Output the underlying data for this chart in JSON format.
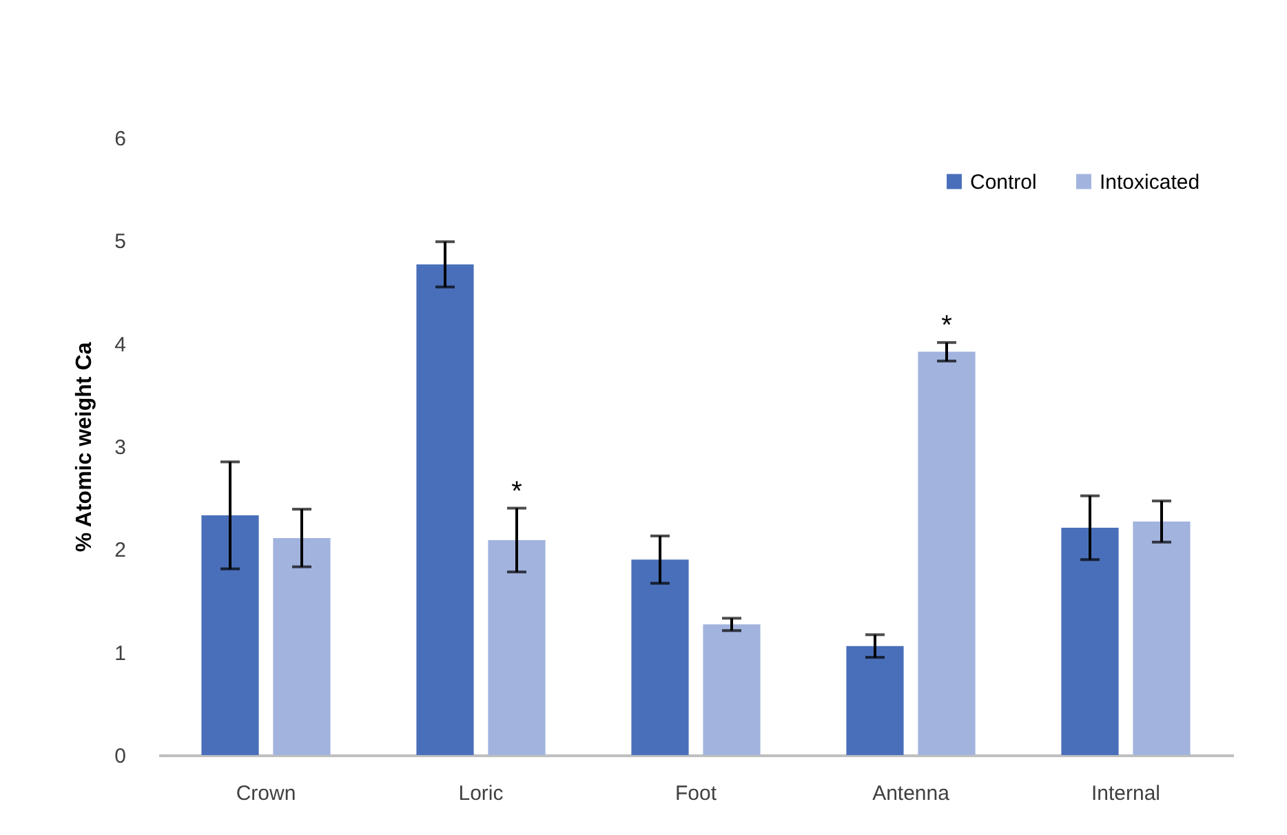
{
  "chart_data": {
    "type": "bar",
    "ylabel": "% Atomic weight Ca",
    "categories": [
      "Crown",
      "Loric",
      "Foot",
      "Antenna",
      "Internal"
    ],
    "series": [
      {
        "name": "Control",
        "color": "#4a6fba",
        "values": [
          2.33,
          4.77,
          1.9,
          1.06,
          2.21
        ],
        "errors": [
          0.52,
          0.22,
          0.23,
          0.11,
          0.31
        ]
      },
      {
        "name": "Intoxicated",
        "color": "#a2b3de",
        "values": [
          2.11,
          2.09,
          1.27,
          3.92,
          2.27
        ],
        "errors": [
          0.28,
          0.31,
          0.06,
          0.09,
          0.2
        ],
        "value_labels": [
          null,
          "*",
          null,
          "*",
          null
        ]
      }
    ],
    "ylim": [
      0,
      6
    ],
    "yticks": [
      0,
      1,
      2,
      3,
      4,
      5,
      6
    ],
    "legend": "top right"
  }
}
